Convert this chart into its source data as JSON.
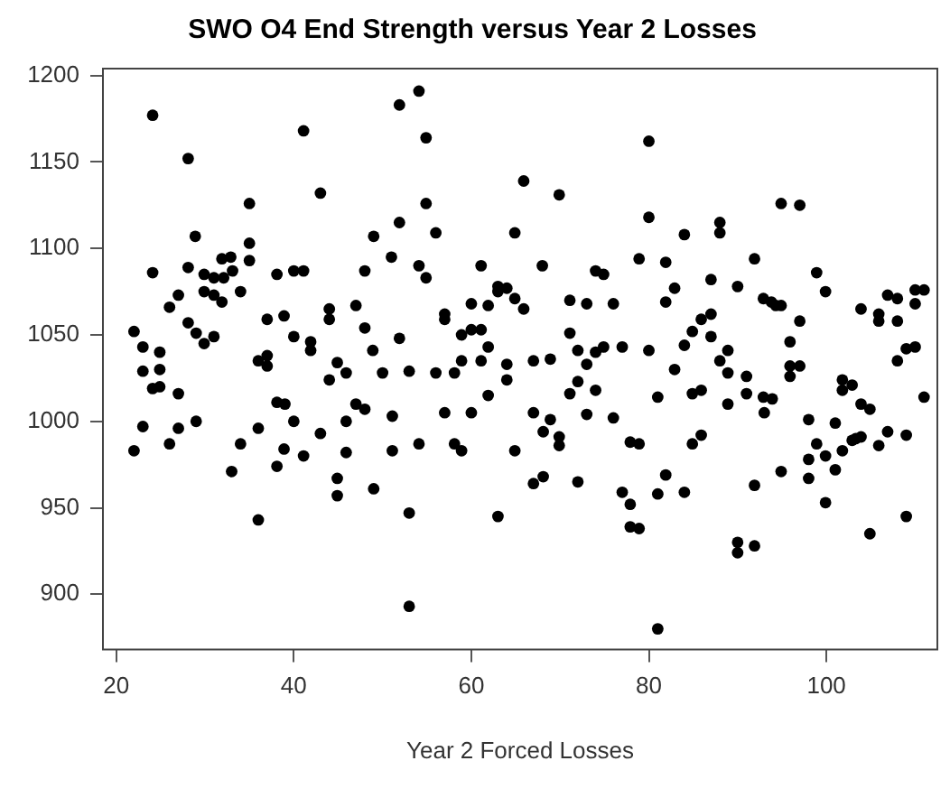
{
  "chart_data": {
    "type": "scatter",
    "title": "SWO O4 End Strength versus Year 2 Losses",
    "xlabel": "Year 2 Forced Losses",
    "marker": "circle",
    "grid": false,
    "legend": false,
    "xlim": [
      18.5,
      112.5
    ],
    "ylim": [
      868,
      1204
    ],
    "xticks": [
      20,
      40,
      60,
      80,
      100
    ],
    "yticks": [
      900,
      950,
      1000,
      1050,
      1100,
      1150,
      1200
    ],
    "series": [
      {
        "color": "#000000",
        "x": [
          24.1,
          41.1,
          28.1,
          43.0,
          35.0,
          28.9,
          49.0,
          35.0,
          35.0,
          31.9,
          32.9,
          24.1,
          28.1,
          29.9,
          31.0,
          32.1,
          33.1,
          38.1,
          40.0,
          41.1,
          48.0,
          29.9,
          31.0,
          31.9,
          34.0,
          27.0,
          26.0,
          44.0,
          47.0,
          37.0,
          38.9,
          44.0,
          28.1,
          48.0,
          22.0,
          29.0,
          31.0,
          29.9,
          40.0,
          41.9,
          41.9,
          23.0,
          24.9,
          48.9,
          36.0,
          37.0,
          37.0,
          44.9,
          45.9,
          23.0,
          24.9,
          44.0,
          24.1,
          24.9,
          27.0,
          38.1,
          39.0,
          47.0,
          54.1,
          51.9,
          54.9,
          80.0,
          65.9,
          69.9,
          54.9,
          80.0,
          51.9,
          56.0,
          64.9,
          51.0,
          78.9,
          54.1,
          61.1,
          68.0,
          54.9,
          74.0,
          74.9,
          63.0,
          63.0,
          64.0,
          64.9,
          65.9,
          60.0,
          61.9,
          71.1,
          73.0,
          76.0,
          57.0,
          57.0,
          58.9,
          60.0,
          61.1,
          61.9,
          71.1,
          72.0,
          74.0,
          74.9,
          77.0,
          80.0,
          51.9,
          50.0,
          53.0,
          56.0,
          58.1,
          58.9,
          61.1,
          64.0,
          64.0,
          67.0,
          68.9,
          73.0,
          72.0,
          74.0,
          71.1,
          61.9,
          94.9,
          97.0,
          88.0,
          88.0,
          84.0,
          81.9,
          91.9,
          98.9,
          99.9,
          82.9,
          81.9,
          87.0,
          90.0,
          92.9,
          93.8,
          94.3,
          94.9,
          97.0,
          85.9,
          87.0,
          84.9,
          87.0,
          84.0,
          82.9,
          88.0,
          88.9,
          88.9,
          95.9,
          95.9,
          97.0,
          95.9,
          91.0,
          103.9,
          105.9,
          105.9,
          106.9,
          108.0,
          108.0,
          110.0,
          111.0,
          110.0,
          109.0,
          110.0,
          108.0,
          101.8,
          102.9,
          101.8,
          81.0,
          84.9,
          85.9,
          88.9,
          91.0,
          92.9,
          93.9,
          111.0,
          103.9,
          22.0,
          23.0,
          26.0,
          27.0,
          29.0,
          33.0,
          34.0,
          36.0,
          38.1,
          38.9,
          40.0,
          41.1,
          43.0,
          45.9,
          45.9,
          44.9,
          44.9,
          49.0,
          36.0,
          48.0,
          51.1,
          57.0,
          60.0,
          67.0,
          68.9,
          73.0,
          76.0,
          51.1,
          54.1,
          58.1,
          58.9,
          64.9,
          68.1,
          69.9,
          69.9,
          77.9,
          78.9,
          53.0,
          63.0,
          67.0,
          68.1,
          72.0,
          77.0,
          77.9,
          77.9,
          78.9,
          53.0,
          93.0,
          98.0,
          101.0,
          104.9,
          84.9,
          85.9,
          98.9,
          98.0,
          99.9,
          101.8,
          102.9,
          103.3,
          103.9,
          106.9,
          109.0,
          105.9,
          101.0,
          94.9,
          98.0,
          81.9,
          81.0,
          84.0,
          91.9,
          99.9,
          90.0,
          90.0,
          91.9,
          104.9,
          109.0,
          81.0
        ],
        "values": [
          1177,
          1168,
          1152,
          1132,
          1126,
          1107,
          1107,
          1103,
          1093,
          1094,
          1095,
          1086,
          1089,
          1085,
          1083,
          1083,
          1087,
          1085,
          1087,
          1087,
          1087,
          1075,
          1073,
          1069,
          1075,
          1073,
          1066,
          1065,
          1067,
          1059,
          1061,
          1059,
          1057,
          1054,
          1052,
          1051,
          1049,
          1045,
          1049,
          1046,
          1041,
          1043,
          1040,
          1041,
          1035,
          1038,
          1032,
          1034,
          1028,
          1029,
          1030,
          1024,
          1019,
          1020,
          1016,
          1011,
          1010,
          1010,
          1191,
          1183,
          1164,
          1162,
          1139,
          1131,
          1126,
          1118,
          1115,
          1109,
          1109,
          1095,
          1094,
          1090,
          1090,
          1090,
          1083,
          1087,
          1085,
          1078,
          1075,
          1077,
          1071,
          1065,
          1068,
          1067,
          1070,
          1068,
          1068,
          1062,
          1059,
          1050,
          1053,
          1053,
          1043,
          1051,
          1041,
          1040,
          1043,
          1043,
          1041,
          1048,
          1028,
          1029,
          1028,
          1028,
          1035,
          1035,
          1033,
          1024,
          1035,
          1036,
          1033,
          1023,
          1018,
          1016,
          1015,
          1126,
          1125,
          1115,
          1109,
          1108,
          1092,
          1094,
          1086,
          1075,
          1077,
          1069,
          1082,
          1078,
          1071,
          1069,
          1067,
          1067,
          1058,
          1059,
          1062,
          1052,
          1049,
          1044,
          1030,
          1035,
          1041,
          1028,
          1046,
          1032,
          1032,
          1026,
          1026,
          1065,
          1062,
          1058,
          1073,
          1071,
          1058,
          1076,
          1076,
          1068,
          1042,
          1043,
          1035,
          1024,
          1021,
          1018,
          1014,
          1016,
          1018,
          1010,
          1016,
          1014,
          1013,
          1014,
          1010,
          983,
          997,
          987,
          996,
          1000,
          971,
          987,
          996,
          974,
          984,
          1000,
          980,
          993,
          1000,
          982,
          967,
          957,
          961,
          943,
          1007,
          1003,
          1005,
          1005,
          1005,
          1001,
          1004,
          1002,
          983,
          987,
          987,
          983,
          983,
          994,
          991,
          986,
          988,
          987,
          947,
          945,
          964,
          968,
          965,
          959,
          952,
          939,
          938,
          893,
          1005,
          1001,
          999,
          1007,
          987,
          992,
          987,
          978,
          980,
          983,
          989,
          990,
          991,
          994,
          992,
          986,
          972,
          971,
          967,
          969,
          958,
          959,
          963,
          953,
          930,
          924,
          928,
          935,
          945,
          880
        ]
      }
    ]
  }
}
